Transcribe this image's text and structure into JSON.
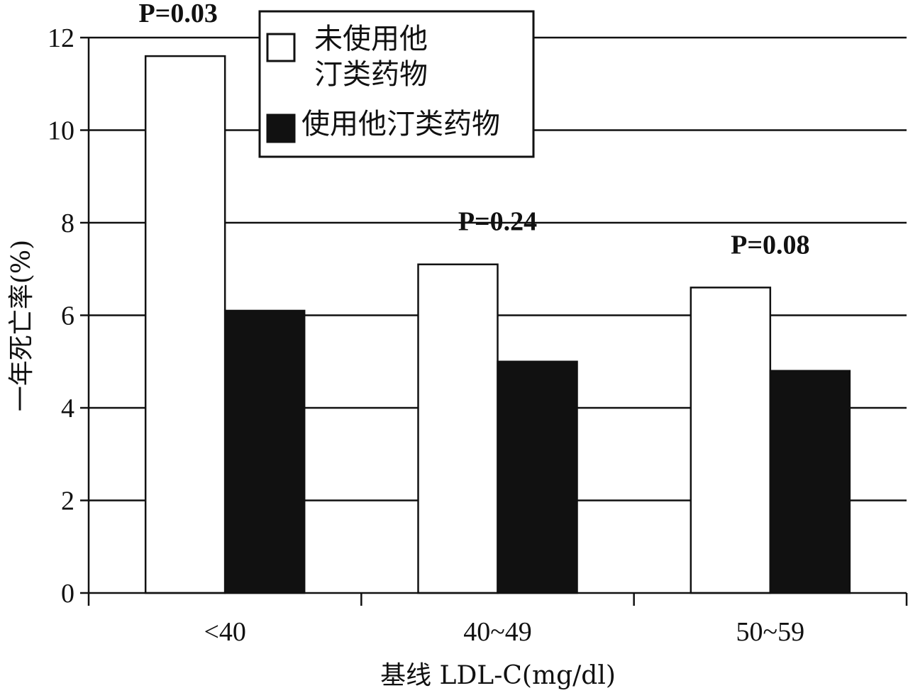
{
  "chart_data": {
    "type": "bar",
    "categories": [
      "<40",
      "40~49",
      "50~59"
    ],
    "series": [
      {
        "name": "未使用他汀类药物",
        "name_lines": [
          "未使用他",
          "汀类药物"
        ],
        "values": [
          11.6,
          7.1,
          6.6
        ],
        "color": "#ffffff"
      },
      {
        "name": "使用他汀类药物",
        "name_lines": [
          "使用他汀类药物"
        ],
        "values": [
          6.1,
          5.0,
          4.8
        ],
        "color": "#111111"
      }
    ],
    "annotations": [
      "P=0.03",
      "P=0.24",
      "P=0.08"
    ],
    "xlabel": "基线 LDL-C(mg/dl)",
    "ylabel": "一年死亡率(%)",
    "ylim": [
      0,
      12
    ],
    "yticks": [
      0,
      2,
      4,
      6,
      8,
      10,
      12
    ],
    "grid": true,
    "legend_position": "top-center"
  }
}
